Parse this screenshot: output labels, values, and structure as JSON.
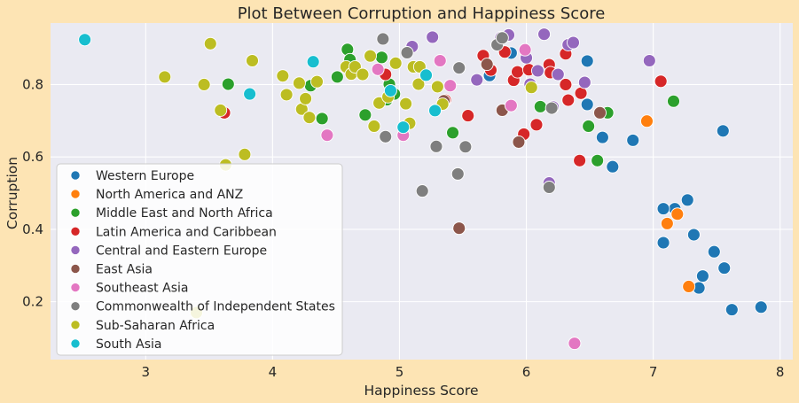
{
  "chart_data": {
    "type": "scatter",
    "title": "Plot Between Corruption and Happiness Score",
    "xlabel": "Happiness Score",
    "ylabel": "Corruption",
    "xlim": [
      2.25,
      8.1
    ],
    "ylim": [
      0.04,
      0.97
    ],
    "xticks": [
      3,
      4,
      5,
      6,
      7,
      8
    ],
    "yticks": [
      0.2,
      0.4,
      0.6,
      0.8
    ],
    "grid": true,
    "legend_position": "lower-left",
    "background_color": "#eaeaf2",
    "figure_color": "#fde4b4",
    "series": [
      {
        "name": "Western Europe",
        "color": "#1f77b4",
        "points": [
          [
            7.85,
            0.185
          ],
          [
            7.62,
            0.178
          ],
          [
            7.56,
            0.293
          ],
          [
            7.55,
            0.672
          ],
          [
            7.48,
            0.338
          ],
          [
            7.39,
            0.271
          ],
          [
            7.36,
            0.238
          ],
          [
            7.32,
            0.385
          ],
          [
            7.27,
            0.481
          ],
          [
            7.17,
            0.457
          ],
          [
            7.08,
            0.457
          ],
          [
            7.08,
            0.363
          ],
          [
            6.84,
            0.646
          ],
          [
            6.68,
            0.573
          ],
          [
            6.6,
            0.654
          ],
          [
            6.48,
            0.745
          ],
          [
            6.48,
            0.865
          ],
          [
            5.88,
            0.887
          ],
          [
            5.71,
            0.825
          ]
        ]
      },
      {
        "name": "North America and ANZ",
        "color": "#ff7f0e",
        "points": [
          [
            7.28,
            0.242
          ],
          [
            7.19,
            0.442
          ],
          [
            7.11,
            0.416
          ],
          [
            6.95,
            0.699
          ]
        ]
      },
      {
        "name": "Middle East and North Africa",
        "color": "#2ca02c",
        "points": [
          [
            3.65,
            0.801
          ],
          [
            4.39,
            0.706
          ],
          [
            4.51,
            0.821
          ],
          [
            4.59,
            0.897
          ],
          [
            4.61,
            0.869
          ],
          [
            4.73,
            0.716
          ],
          [
            4.86,
            0.875
          ],
          [
            4.9,
            0.758
          ],
          [
            4.92,
            0.801
          ],
          [
            4.96,
            0.774
          ],
          [
            5.42,
            0.667
          ],
          [
            6.11,
            0.739
          ],
          [
            6.49,
            0.685
          ],
          [
            6.56,
            0.59
          ],
          [
            6.64,
            0.722
          ],
          [
            7.16,
            0.754
          ],
          [
            4.3,
            0.797
          ]
        ]
      },
      {
        "name": "Latin America and Caribbean",
        "color": "#d62728",
        "points": [
          [
            3.62,
            0.722
          ],
          [
            4.89,
            0.828
          ],
          [
            5.36,
            0.757
          ],
          [
            5.54,
            0.714
          ],
          [
            5.66,
            0.88
          ],
          [
            5.72,
            0.84
          ],
          [
            5.83,
            0.89
          ],
          [
            5.9,
            0.812
          ],
          [
            5.93,
            0.835
          ],
          [
            5.98,
            0.663
          ],
          [
            6.02,
            0.841
          ],
          [
            6.08,
            0.689
          ],
          [
            6.18,
            0.855
          ],
          [
            6.19,
            0.833
          ],
          [
            6.31,
            0.8
          ],
          [
            6.31,
            0.885
          ],
          [
            6.33,
            0.757
          ],
          [
            6.42,
            0.59
          ],
          [
            6.43,
            0.776
          ],
          [
            7.06,
            0.809
          ]
        ]
      },
      {
        "name": "Central and Eastern Europe",
        "color": "#9467bd",
        "points": [
          [
            5.1,
            0.905
          ],
          [
            5.26,
            0.931
          ],
          [
            5.61,
            0.813
          ],
          [
            5.8,
            0.93
          ],
          [
            5.86,
            0.937
          ],
          [
            6.0,
            0.874
          ],
          [
            6.03,
            0.801
          ],
          [
            6.09,
            0.838
          ],
          [
            6.14,
            0.939
          ],
          [
            6.18,
            0.528
          ],
          [
            6.21,
            0.738
          ],
          [
            6.25,
            0.828
          ],
          [
            6.33,
            0.91
          ],
          [
            6.37,
            0.916
          ],
          [
            6.46,
            0.806
          ],
          [
            6.97,
            0.866
          ]
        ]
      },
      {
        "name": "East Asia",
        "color": "#8c564b",
        "points": [
          [
            5.47,
            0.403
          ],
          [
            5.69,
            0.856
          ],
          [
            5.81,
            0.729
          ],
          [
            5.94,
            0.641
          ],
          [
            6.58,
            0.722
          ],
          [
            5.35,
            0.755
          ]
        ]
      },
      {
        "name": "Southeast Asia",
        "color": "#e377c2",
        "points": [
          [
            4.43,
            0.66
          ],
          [
            4.83,
            0.842
          ],
          [
            5.03,
            0.66
          ],
          [
            5.32,
            0.866
          ],
          [
            5.4,
            0.797
          ],
          [
            5.88,
            0.742
          ],
          [
            5.99,
            0.896
          ],
          [
            6.38,
            0.085
          ]
        ]
      },
      {
        "name": "Commonwealth of Independent States",
        "color": "#7f7f7f",
        "points": [
          [
            4.87,
            0.926
          ],
          [
            4.89,
            0.656
          ],
          [
            5.06,
            0.888
          ],
          [
            5.18,
            0.506
          ],
          [
            5.29,
            0.629
          ],
          [
            5.46,
            0.553
          ],
          [
            5.47,
            0.846
          ],
          [
            5.52,
            0.628
          ],
          [
            5.77,
            0.91
          ],
          [
            5.81,
            0.929
          ],
          [
            6.18,
            0.516
          ],
          [
            6.2,
            0.735
          ]
        ]
      },
      {
        "name": "Sub-Saharan Africa",
        "color": "#bcbd22",
        "points": [
          [
            3.15,
            0.821
          ],
          [
            3.46,
            0.8
          ],
          [
            3.51,
            0.913
          ],
          [
            3.59,
            0.729
          ],
          [
            3.63,
            0.578
          ],
          [
            3.78,
            0.607
          ],
          [
            3.84,
            0.866
          ],
          [
            3.4,
            0.17
          ],
          [
            4.08,
            0.824
          ],
          [
            4.11,
            0.772
          ],
          [
            4.21,
            0.804
          ],
          [
            4.23,
            0.732
          ],
          [
            4.26,
            0.761
          ],
          [
            4.29,
            0.709
          ],
          [
            4.35,
            0.808
          ],
          [
            4.58,
            0.849
          ],
          [
            4.62,
            0.829
          ],
          [
            4.65,
            0.849
          ],
          [
            4.71,
            0.828
          ],
          [
            4.77,
            0.879
          ],
          [
            4.8,
            0.685
          ],
          [
            4.84,
            0.749
          ],
          [
            4.91,
            0.766
          ],
          [
            4.97,
            0.859
          ],
          [
            5.05,
            0.747
          ],
          [
            5.08,
            0.693
          ],
          [
            5.11,
            0.849
          ],
          [
            5.15,
            0.801
          ],
          [
            5.16,
            0.849
          ],
          [
            5.3,
            0.794
          ],
          [
            5.34,
            0.746
          ],
          [
            6.04,
            0.792
          ]
        ]
      },
      {
        "name": "South Asia",
        "color": "#17becf",
        "points": [
          [
            2.52,
            0.924
          ],
          [
            3.82,
            0.774
          ],
          [
            4.32,
            0.863
          ],
          [
            4.93,
            0.783
          ],
          [
            5.03,
            0.682
          ],
          [
            5.21,
            0.826
          ],
          [
            5.28,
            0.728
          ]
        ]
      }
    ]
  }
}
